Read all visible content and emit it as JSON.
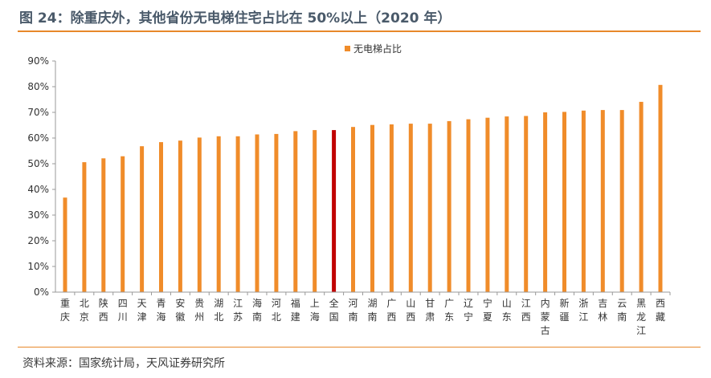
{
  "header": {
    "title": "图 24：除重庆外，其他省份无电梯住宅占比在 50%以上（2020 年）"
  },
  "footer": {
    "source": "资料来源：国家统计局，天风证券研究所"
  },
  "colors": {
    "bar": "#f08c2a",
    "highlight": "#c00000",
    "accent": "#e8882a"
  },
  "chart_data": {
    "type": "bar",
    "legend": {
      "position": "top-center",
      "label": "无电梯占比"
    },
    "ylim": [
      0,
      90
    ],
    "yticks": [
      "0%",
      "10%",
      "20%",
      "30%",
      "40%",
      "50%",
      "60%",
      "70%",
      "80%",
      "90%"
    ],
    "highlight_category": "全国",
    "categories": [
      "重庆",
      "北京",
      "陕西",
      "四川",
      "天津",
      "青海",
      "安徽",
      "贵州",
      "湖北",
      "江苏",
      "海南",
      "河北",
      "福建",
      "上海",
      "全国",
      "河南",
      "湖南",
      "广西",
      "山西",
      "甘肃",
      "广东",
      "辽宁",
      "宁夏",
      "山东",
      "江西",
      "内蒙古",
      "新疆",
      "浙江",
      "吉林",
      "云南",
      "黑龙江",
      "西藏"
    ],
    "series": [
      {
        "name": "无电梯占比",
        "values": [
          36.8,
          50.6,
          52.1,
          52.9,
          56.8,
          58.4,
          59.0,
          60.2,
          60.7,
          60.7,
          61.4,
          61.6,
          62.7,
          63.1,
          63.1,
          64.3,
          65.1,
          65.3,
          65.6,
          65.6,
          66.6,
          67.3,
          67.9,
          68.4,
          68.6,
          70.0,
          70.2,
          70.7,
          70.9,
          70.9,
          74.1,
          80.7
        ]
      }
    ]
  }
}
